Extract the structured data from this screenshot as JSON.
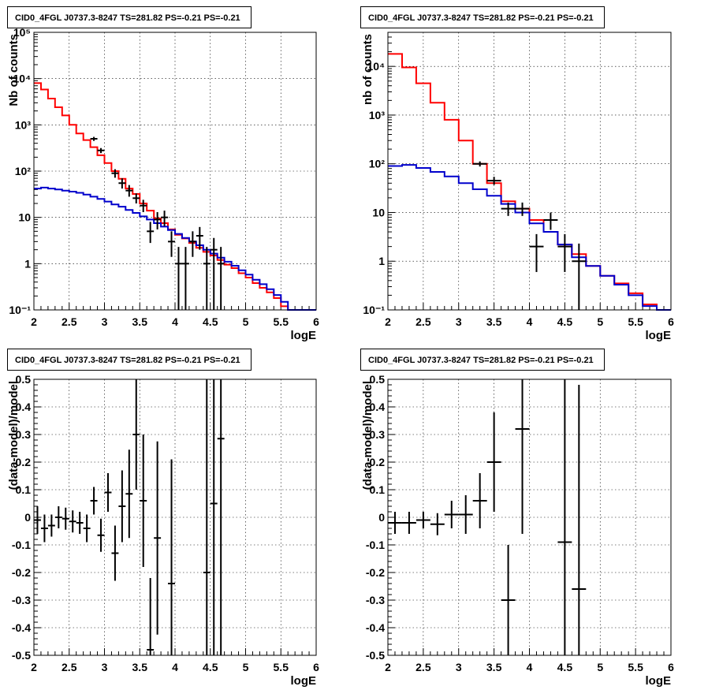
{
  "colors": {
    "model": "#ff0000",
    "background": "#0000cc",
    "data": "#000000",
    "frame": "#000000"
  },
  "chart_data": [
    {
      "type": "histogram",
      "title": "CID0_4FGL J0737.3-8247 TS=281.82 PS=-0.21 PS=-0.21",
      "xlabel": "logE",
      "ylabel": "Nb of counts",
      "xlim": [
        2,
        6
      ],
      "ylim": [
        0.1,
        100000
      ],
      "ylog": true,
      "grid": true,
      "x_ticks": [
        "2",
        "2.5",
        "3",
        "3.5",
        "4",
        "4.5",
        "5",
        "5.5",
        "6"
      ],
      "y_ticks": [
        "10⁻¹",
        "1",
        "10",
        "10²",
        "10³",
        "10⁴",
        "10⁵"
      ],
      "bin_edges": [
        2.0,
        2.1,
        2.2,
        2.3,
        2.4,
        2.5,
        2.6,
        2.7,
        2.8,
        2.9,
        3.0,
        3.1,
        3.2,
        3.3,
        3.4,
        3.5,
        3.6,
        3.7,
        3.8,
        3.9,
        4.0,
        4.1,
        4.2,
        4.3,
        4.4,
        4.5,
        4.6,
        4.7,
        4.8,
        4.9,
        5.0,
        5.1,
        5.2,
        5.3,
        5.4,
        5.5,
        5.6,
        5.7,
        5.8,
        5.9,
        6.0
      ],
      "model_total": [
        8000,
        5800,
        3700,
        2400,
        1600,
        1000,
        650,
        470,
        330,
        220,
        150,
        100,
        68,
        42,
        32,
        20,
        14,
        9.5,
        7.5,
        5.5,
        4.2,
        3.5,
        2.8,
        2.2,
        1.8,
        1.5,
        1.2,
        0.95,
        0.8,
        0.62,
        0.5,
        0.38,
        0.3,
        0.24,
        0.18,
        0.12,
        0.1,
        0.1,
        0.1,
        0.1
      ],
      "background": [
        42,
        44,
        42,
        40,
        38,
        36,
        34,
        31,
        28,
        25,
        22,
        19,
        17,
        14.5,
        12.5,
        10.5,
        9,
        7.5,
        6.3,
        5.3,
        4.4,
        3.6,
        3.0,
        2.5,
        2.0,
        1.65,
        1.35,
        1.1,
        0.9,
        0.72,
        0.58,
        0.45,
        0.36,
        0.28,
        0.21,
        0.15,
        0.1,
        0.1,
        0.1,
        0.1
      ],
      "data_points": [
        {
          "x": 2.85,
          "y": 500,
          "lo": 450,
          "hi": 550
        },
        {
          "x": 2.95,
          "y": 280,
          "lo": 245,
          "hi": 315
        },
        {
          "x": 3.15,
          "y": 90,
          "lo": 72,
          "hi": 110
        },
        {
          "x": 3.25,
          "y": 55,
          "lo": 42,
          "hi": 70
        },
        {
          "x": 3.35,
          "y": 38,
          "lo": 28,
          "hi": 50
        },
        {
          "x": 3.45,
          "y": 26,
          "lo": 20,
          "hi": 33
        },
        {
          "x": 3.55,
          "y": 18,
          "lo": 13,
          "hi": 24
        },
        {
          "x": 3.65,
          "y": 5,
          "lo": 2.8,
          "hi": 8
        },
        {
          "x": 3.75,
          "y": 9,
          "lo": 5.5,
          "hi": 13
        },
        {
          "x": 3.85,
          "y": 10,
          "lo": 6.5,
          "hi": 14
        },
        {
          "x": 3.95,
          "y": 3,
          "lo": 1.4,
          "hi": 5
        },
        {
          "x": 4.05,
          "y": 1,
          "lo": 0.1,
          "hi": 2.3
        },
        {
          "x": 4.15,
          "y": 1,
          "lo": 0.1,
          "hi": 2.3
        },
        {
          "x": 4.25,
          "y": 3,
          "lo": 1.4,
          "hi": 5
        },
        {
          "x": 4.35,
          "y": 4,
          "lo": 2,
          "hi": 6.2
        },
        {
          "x": 4.45,
          "y": 1,
          "lo": 0.1,
          "hi": 2.3
        },
        {
          "x": 4.55,
          "y": 2,
          "lo": 0.1,
          "hi": 3.6
        },
        {
          "x": 4.65,
          "y": 1,
          "lo": 0.1,
          "hi": 2.3
        }
      ]
    },
    {
      "type": "histogram",
      "title": "CID0_4FGL J0737.3-8247 TS=281.82 PS=-0.21 PS=-0.21",
      "xlabel": "logE",
      "ylabel": "nb of counts",
      "xlim": [
        2,
        6
      ],
      "ylim": [
        0.1,
        50000
      ],
      "ylog": true,
      "grid": true,
      "x_ticks": [
        "2",
        "2.5",
        "3",
        "3.5",
        "4",
        "4.5",
        "5",
        "5.5",
        "6"
      ],
      "y_ticks": [
        "10⁻¹",
        "1",
        "10",
        "10²",
        "10³",
        "10⁴"
      ],
      "bin_edges": [
        2.0,
        2.2,
        2.4,
        2.6,
        2.8,
        3.0,
        3.2,
        3.4,
        3.6,
        3.8,
        4.0,
        4.2,
        4.4,
        4.6,
        4.8,
        5.0,
        5.2,
        5.4,
        5.6,
        5.8,
        6.0
      ],
      "model_total": [
        18000,
        9500,
        4500,
        1800,
        800,
        300,
        100,
        40,
        17,
        12,
        7,
        4,
        2.2,
        1.4,
        0.8,
        0.5,
        0.35,
        0.22,
        0.13,
        0.1
      ],
      "background": [
        90,
        95,
        82,
        68,
        55,
        40,
        30,
        22,
        15,
        10,
        6,
        4,
        2.2,
        1.2,
        0.8,
        0.5,
        0.33,
        0.2,
        0.12,
        0.1
      ],
      "data_points": [
        {
          "x": 3.3,
          "y": 100,
          "lo": 88,
          "hi": 112
        },
        {
          "x": 3.5,
          "y": 45,
          "lo": 37,
          "hi": 54
        },
        {
          "x": 3.7,
          "y": 12,
          "lo": 8.5,
          "hi": 16
        },
        {
          "x": 3.9,
          "y": 12,
          "lo": 8.5,
          "hi": 16
        },
        {
          "x": 4.1,
          "y": 2,
          "lo": 0.6,
          "hi": 3.6
        },
        {
          "x": 4.3,
          "y": 7,
          "lo": 4.4,
          "hi": 10
        },
        {
          "x": 4.5,
          "y": 2,
          "lo": 0.6,
          "hi": 3.6
        },
        {
          "x": 4.7,
          "y": 1,
          "lo": 0.1,
          "hi": 2.3
        }
      ]
    },
    {
      "type": "scatter",
      "title": "CID0_4FGL J0737.3-8247 TS=281.82 PS=-0.21 PS=-0.21",
      "xlabel": "logE",
      "ylabel": "(data-model)/model",
      "xlim": [
        2,
        6
      ],
      "ylim": [
        -0.5,
        0.5
      ],
      "grid": true,
      "x_ticks": [
        "2",
        "2.5",
        "3",
        "3.5",
        "4",
        "4.5",
        "5",
        "5.5",
        "6"
      ],
      "y_ticks": [
        "-0.5",
        "-0.4",
        "-0.3",
        "-0.2",
        "-0.1",
        "0",
        "0.1",
        "0.2",
        "0.3",
        "0.4",
        "0.5"
      ],
      "points": [
        {
          "x": 2.05,
          "y": -0.01,
          "err": 0.05
        },
        {
          "x": 2.15,
          "y": -0.04,
          "err": 0.05
        },
        {
          "x": 2.25,
          "y": -0.03,
          "err": 0.04
        },
        {
          "x": 2.35,
          "y": 0.0,
          "err": 0.04
        },
        {
          "x": 2.45,
          "y": -0.005,
          "err": 0.04
        },
        {
          "x": 2.55,
          "y": -0.015,
          "err": 0.04
        },
        {
          "x": 2.65,
          "y": -0.02,
          "err": 0.04
        },
        {
          "x": 2.75,
          "y": -0.04,
          "err": 0.05
        },
        {
          "x": 2.85,
          "y": 0.06,
          "err": 0.05
        },
        {
          "x": 2.95,
          "y": -0.065,
          "err": 0.06
        },
        {
          "x": 3.05,
          "y": 0.09,
          "err": 0.07
        },
        {
          "x": 3.15,
          "y": -0.13,
          "err": 0.1
        },
        {
          "x": 3.25,
          "y": 0.04,
          "err": 0.13
        },
        {
          "x": 3.35,
          "y": 0.085,
          "err": 0.16
        },
        {
          "x": 3.45,
          "y": 0.3,
          "err": 0.2
        },
        {
          "x": 3.55,
          "y": 0.06,
          "err": 0.24
        },
        {
          "x": 3.65,
          "y": -0.48,
          "err": 0.26
        },
        {
          "x": 3.75,
          "y": -0.075,
          "err": 0.35
        },
        {
          "x": 3.95,
          "y": -0.24,
          "err": 0.45
        },
        {
          "x": 4.45,
          "y": -0.2,
          "err": 0.8
        },
        {
          "x": 4.55,
          "y": 0.05,
          "err": 0.9
        },
        {
          "x": 4.65,
          "y": 0.285,
          "err": 0.9
        }
      ]
    },
    {
      "type": "scatter",
      "title": "CID0_4FGL J0737.3-8247 TS=281.82 PS=-0.21 PS=-0.21",
      "xlabel": "logE",
      "ylabel": "(data-model)/model",
      "xlim": [
        2,
        6
      ],
      "ylim": [
        -0.5,
        0.5
      ],
      "grid": true,
      "x_ticks": [
        "2",
        "2.5",
        "3",
        "3.5",
        "4",
        "4.5",
        "5",
        "5.5",
        "6"
      ],
      "y_ticks": [
        "-0.5",
        "-0.4",
        "-0.3",
        "-0.2",
        "-0.1",
        "0",
        "0.1",
        "0.2",
        "0.3",
        "0.4",
        "0.5"
      ],
      "points": [
        {
          "x": 2.1,
          "y": -0.02,
          "err": 0.04
        },
        {
          "x": 2.3,
          "y": -0.02,
          "err": 0.04
        },
        {
          "x": 2.5,
          "y": -0.01,
          "err": 0.03
        },
        {
          "x": 2.7,
          "y": -0.025,
          "err": 0.04
        },
        {
          "x": 2.9,
          "y": 0.01,
          "err": 0.05
        },
        {
          "x": 3.1,
          "y": 0.01,
          "err": 0.07
        },
        {
          "x": 3.3,
          "y": 0.06,
          "err": 0.1
        },
        {
          "x": 3.5,
          "y": 0.2,
          "err": 0.18
        },
        {
          "x": 3.7,
          "y": -0.3,
          "err": 0.2
        },
        {
          "x": 3.9,
          "y": 0.32,
          "err": 0.38
        },
        {
          "x": 4.5,
          "y": -0.09,
          "err": 0.9
        },
        {
          "x": 4.7,
          "y": -0.26,
          "err": 0.74
        }
      ]
    }
  ]
}
